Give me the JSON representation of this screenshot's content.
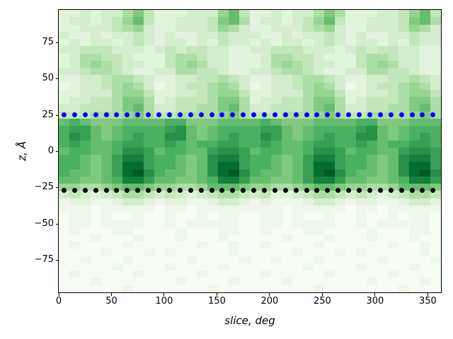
{
  "chart_data": {
    "type": "heatmap",
    "title": "",
    "xlabel": "slice, deg",
    "ylabel": "z, Å",
    "colormap": "Greens",
    "colormap_stops": [
      "#f7fcf5",
      "#e5f5e0",
      "#c7e9c0",
      "#a1d99b",
      "#74c476",
      "#41ab5d",
      "#238b45",
      "#006d2c",
      "#00441b"
    ],
    "x_range": [
      0,
      362.5
    ],
    "z_range": [
      -97.5,
      97.5
    ],
    "n_cols": 36,
    "n_rows": 39,
    "col_width_deg": 10,
    "row_height_angstrom": 5,
    "row_z_centers_top_to_bottom_start": 95,
    "intensity_encoding": "each char is a hex digit 0-15 mapped to 0..1 on the Greens colormap, rows listed top (z=95) to bottom (z=-95)",
    "heat_rows": [
      "223233574222333684223233575222334684",
      "233234684223334785233234684223334785",
      "223334563223334653223334563223334653",
      "322323343232233433322323343232233433",
      "232332343233232433232332343233232433",
      "334443332343443322334443332343443322",
      "235544322245543322235544322245543322",
      "235654332245653322235654332245653322",
      "334554322335544322334554322335544322",
      "223345543223344543223345543223344543",
      "123345653123445653123345653123445653",
      "223335664223345664223335664223345664",
      "233445775234445775233445775234445775",
      "334445785334455785334445785334455785",
      "444555675445555675444555675445555675",
      "898777888899777888898777888899777888",
      "9aa8789999ab8789999aa8789999ab878999",
      "9ba8789a99bb8789a99ba8789a99bb8789a9",
      "9a9889aa99a9899aa99a9889aa99a9899aa9",
      "899889bba89988abba899889bba89988abba",
      "99878acca99878bcca99878acca99878bcca",
      "99878adda99878bdda99878adda99878bdda",
      "98878adeb98878bdeb98878adeb98878bdeb",
      "887789cca887789cca88778acca887789cca",
      "665567887665568887665567887665568887",
      "343234554343234554342234554343234554",
      "122112332122112332121112332122112332",
      "111011111011011111111011111011011111",
      "011010010010010110011010010010010110",
      "011011110010111110011011110010111110",
      "010001100001000110010001100001000110",
      "000100010001000100000100010001000100",
      "010000100000010010010000100000010010",
      "000010001010000010000010001010000010",
      "001000100000100001001000100000100001",
      "000001000010000100000001000010000100",
      "010000010000010000010000010000010000",
      "000100000001000010000100000001000010",
      "000000100000001000000000100000001000"
    ],
    "x_ticks": [
      0,
      50,
      100,
      150,
      200,
      250,
      300,
      350
    ],
    "x_tick_labels": [
      "0",
      "50",
      "100",
      "150",
      "200",
      "250",
      "300",
      "350"
    ],
    "y_ticks": [
      -75,
      -50,
      -25,
      0,
      25,
      50,
      75
    ],
    "y_tick_labels": [
      "−75",
      "−50",
      "−25",
      "0",
      "25",
      "50",
      "75"
    ],
    "grid": false,
    "legend": "none",
    "overlays": [
      {
        "name": "upper-interface-dotted-line",
        "marker": "dot",
        "color": "#0000ff",
        "z": 25,
        "x_deg": [
          5,
          15,
          25,
          35,
          45,
          55,
          65,
          75,
          85,
          95,
          105,
          115,
          125,
          135,
          145,
          155,
          165,
          175,
          185,
          195,
          205,
          215,
          225,
          235,
          245,
          255,
          265,
          275,
          285,
          295,
          305,
          315,
          325,
          335,
          345,
          355
        ]
      },
      {
        "name": "lower-interface-dotted-line",
        "marker": "dot",
        "color": "#000000",
        "z": -27,
        "x_deg": [
          5,
          15,
          25,
          35,
          45,
          55,
          65,
          75,
          85,
          95,
          105,
          115,
          125,
          135,
          145,
          155,
          165,
          175,
          185,
          195,
          205,
          215,
          225,
          235,
          245,
          255,
          265,
          275,
          285,
          295,
          305,
          315,
          325,
          335,
          345,
          355
        ]
      }
    ]
  }
}
